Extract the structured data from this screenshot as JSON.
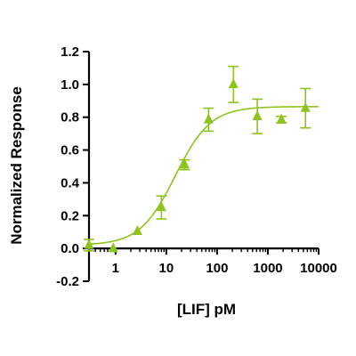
{
  "chart_data": {
    "type": "scatter",
    "title": "",
    "xlabel": "[LIF] pM",
    "ylabel": "Normalized Response",
    "x_scale": "log",
    "xlim": [
      0.3,
      10000
    ],
    "ylim": [
      -0.2,
      1.2
    ],
    "x_ticks": [
      1,
      10,
      100,
      1000,
      10000
    ],
    "x_tick_labels": [
      "1",
      "10",
      "100",
      "1000",
      "10000"
    ],
    "y_ticks": [
      -0.2,
      0.0,
      0.2,
      0.4,
      0.6,
      0.8,
      1.0,
      1.2
    ],
    "y_tick_labels": [
      "-0.2",
      "0.0",
      "0.2",
      "0.4",
      "0.6",
      "0.8",
      "1.0",
      "1.2"
    ],
    "grid": false,
    "legend": "none",
    "color": "#8fc31f",
    "series": [
      {
        "marker": "triangle",
        "points": [
          {
            "x": 0.3,
            "y": 0.02,
            "err": 0.035
          },
          {
            "x": 0.9,
            "y": 0.0,
            "err": 0.0
          },
          {
            "x": 2.7,
            "y": 0.105,
            "err": 0.0
          },
          {
            "x": 8.0,
            "y": 0.25,
            "err": 0.07
          },
          {
            "x": 23.0,
            "y": 0.51,
            "err": 0.03
          },
          {
            "x": 68.0,
            "y": 0.785,
            "err": 0.07
          },
          {
            "x": 210.0,
            "y": 1.0,
            "err": 0.11
          },
          {
            "x": 620.0,
            "y": 0.805,
            "err": 0.105
          },
          {
            "x": 1850.0,
            "y": 0.785,
            "err": 0.02
          },
          {
            "x": 5500.0,
            "y": 0.855,
            "err": 0.12
          }
        ]
      }
    ],
    "fit_curve": {
      "model": "4-parameter logistic",
      "bottom": 0.02,
      "top": 0.865,
      "ec50": 15,
      "hill": 1.25
    }
  }
}
